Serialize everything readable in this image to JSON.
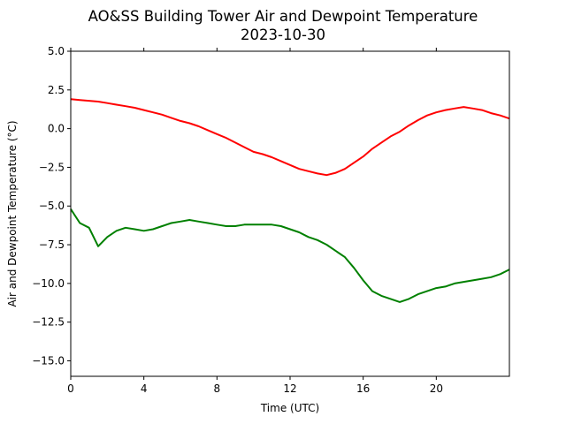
{
  "chart_data": {
    "type": "line",
    "title": "AO&SS Building Tower Air and Dewpoint Temperature",
    "subtitle": "2023-10-30",
    "xlabel": "Time (UTC)",
    "ylabel": "Air and Dewpoint Temperature (°C)",
    "xlim": [
      0,
      24
    ],
    "ylim": [
      -16,
      5
    ],
    "xticks": [
      0,
      4,
      8,
      12,
      16,
      20
    ],
    "yticks": [
      5.0,
      2.5,
      0.0,
      -2.5,
      -5.0,
      -7.5,
      -10.0,
      -12.5,
      -15.0
    ],
    "ytick_labels": [
      "5.0",
      "2.5",
      "0.0",
      "−2.5",
      "−5.0",
      "−7.5",
      "−10.0",
      "−12.5",
      "−15.0"
    ],
    "grid": false,
    "series": [
      {
        "color": "#ff0000",
        "x": [
          0,
          0.5,
          1,
          1.5,
          2,
          2.5,
          3,
          3.5,
          4,
          4.5,
          5,
          5.5,
          6,
          6.5,
          7,
          7.5,
          8,
          8.5,
          9,
          9.5,
          10,
          10.5,
          11,
          11.5,
          12,
          12.5,
          13,
          13.5,
          14,
          14.5,
          15,
          15.5,
          16,
          16.5,
          17,
          17.5,
          18,
          18.5,
          19,
          19.5,
          20,
          20.5,
          21,
          21.5,
          22,
          22.5,
          23,
          23.5,
          24
        ],
        "y": [
          1.9,
          1.85,
          1.8,
          1.75,
          1.65,
          1.55,
          1.45,
          1.35,
          1.2,
          1.05,
          0.9,
          0.7,
          0.5,
          0.35,
          0.15,
          -0.1,
          -0.35,
          -0.6,
          -0.9,
          -1.2,
          -1.5,
          -1.65,
          -1.85,
          -2.1,
          -2.35,
          -2.6,
          -2.75,
          -2.9,
          -3.0,
          -2.85,
          -2.6,
          -2.2,
          -1.8,
          -1.3,
          -0.9,
          -0.5,
          -0.2,
          0.2,
          0.55,
          0.85,
          1.05,
          1.2,
          1.3,
          1.4,
          1.3,
          1.2,
          1.0,
          0.85,
          0.65
        ]
      },
      {
        "color": "#008000",
        "x": [
          0,
          0.5,
          1,
          1.5,
          2,
          2.5,
          3,
          3.5,
          4,
          4.5,
          5,
          5.5,
          6,
          6.5,
          7,
          7.5,
          8,
          8.5,
          9,
          9.5,
          10,
          10.5,
          11,
          11.5,
          12,
          12.5,
          13,
          13.5,
          14,
          14.5,
          15,
          15.5,
          16,
          16.5,
          17,
          17.5,
          18,
          18.5,
          19,
          19.5,
          20,
          20.5,
          21,
          21.5,
          22,
          22.5,
          23,
          23.5,
          24
        ],
        "y": [
          -5.2,
          -6.1,
          -6.4,
          -7.6,
          -7.0,
          -6.6,
          -6.4,
          -6.5,
          -6.6,
          -6.5,
          -6.3,
          -6.1,
          -6.0,
          -5.9,
          -6.0,
          -6.1,
          -6.2,
          -6.3,
          -6.3,
          -6.2,
          -6.2,
          -6.2,
          -6.2,
          -6.3,
          -6.5,
          -6.7,
          -7.0,
          -7.2,
          -7.5,
          -7.9,
          -8.3,
          -9.0,
          -9.8,
          -10.5,
          -10.8,
          -11.0,
          -11.2,
          -11.0,
          -10.7,
          -10.5,
          -10.3,
          -10.2,
          -10.0,
          -9.9,
          -9.8,
          -9.7,
          -9.6,
          -9.4,
          -9.1
        ]
      }
    ]
  }
}
